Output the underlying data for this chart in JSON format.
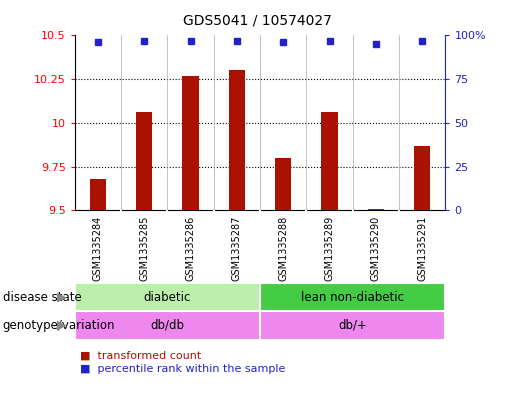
{
  "title": "GDS5041 / 10574027",
  "samples": [
    "GSM1335284",
    "GSM1335285",
    "GSM1335286",
    "GSM1335287",
    "GSM1335288",
    "GSM1335289",
    "GSM1335290",
    "GSM1335291"
  ],
  "transformed_counts": [
    9.68,
    10.06,
    10.27,
    10.3,
    9.8,
    10.06,
    9.51,
    9.87
  ],
  "percentile_ranks": [
    96,
    97,
    97,
    97,
    96,
    97,
    95,
    97
  ],
  "ylim_left": [
    9.5,
    10.5
  ],
  "ylim_right": [
    0,
    100
  ],
  "yticks_left": [
    9.5,
    9.75,
    10.0,
    10.25,
    10.5
  ],
  "yticks_right": [
    0,
    25,
    50,
    75,
    100
  ],
  "bar_color": "#AA1100",
  "dot_color": "#2222CC",
  "disease_states": [
    {
      "label": "diabetic",
      "start": 0,
      "end": 4,
      "color": "#BBEEAA"
    },
    {
      "label": "lean non-diabetic",
      "start": 4,
      "end": 8,
      "color": "#44CC44"
    }
  ],
  "genotypes": [
    {
      "label": "db/db",
      "start": 0,
      "end": 4,
      "color": "#EE88EE"
    },
    {
      "label": "db/+",
      "start": 4,
      "end": 8,
      "color": "#EE88EE"
    }
  ],
  "disease_label": "disease state",
  "genotype_label": "genotype/variation",
  "legend_items": [
    {
      "label": "transformed count",
      "color": "#AA1100"
    },
    {
      "label": "percentile rank within the sample",
      "color": "#2222CC"
    }
  ],
  "plot_bg_color": "#FFFFFF",
  "sample_bg_color": "#CCCCCC",
  "title_fontsize": 10,
  "tick_fontsize": 8,
  "annotation_fontsize": 8.5
}
